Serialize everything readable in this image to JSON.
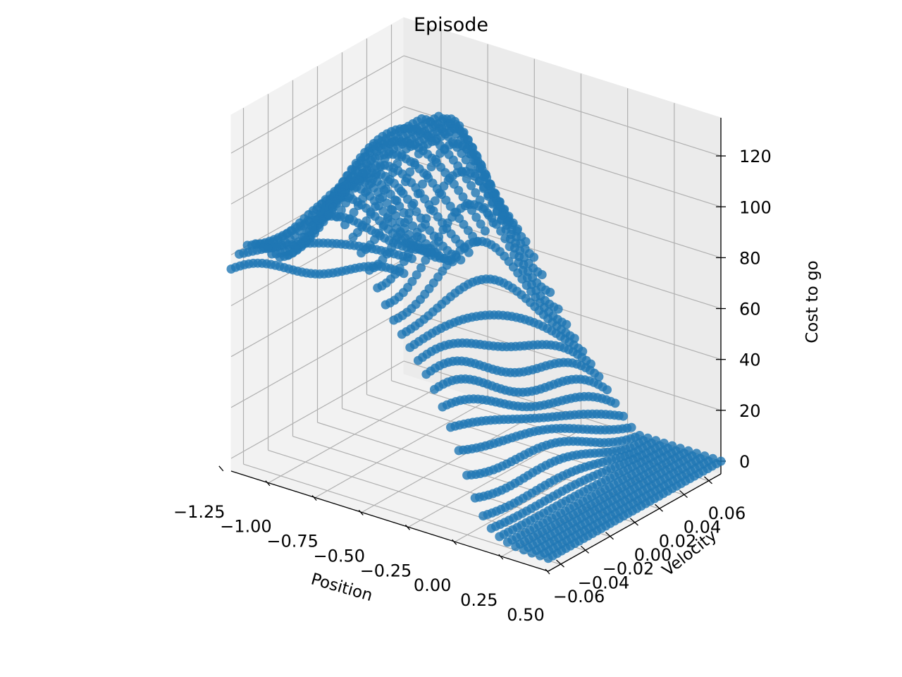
{
  "chart_data": {
    "type": "scatter",
    "projection": "3d",
    "title": "Episode",
    "xlabel": "Position",
    "ylabel": "Velocity",
    "zlabel": "Cost to go",
    "xlim": [
      -1.2,
      0.5
    ],
    "ylim": [
      -0.07,
      0.07
    ],
    "zlim": [
      -5,
      135
    ],
    "xticks": [
      "−1.25",
      "−1.00",
      "−0.75",
      "−0.50",
      "−0.25",
      "0.00",
      "0.25",
      "0.50"
    ],
    "yticks": [
      "−0.06",
      "−0.04",
      "−0.02",
      "0.00",
      "0.02",
      "0.04",
      "0.06"
    ],
    "zticks": [
      "0",
      "20",
      "40",
      "60",
      "80",
      "100",
      "120"
    ],
    "grid": true,
    "series": [
      {
        "marker_color": "#1f77b4",
        "grid_size": 40,
        "position_range": [
          -1.2,
          0.5
        ],
        "velocity_range": [
          -0.07,
          0.07
        ],
        "cost_to_go_min": 0,
        "cost_to_go_max": 125,
        "description": "Tile-coded cost-to-go estimate over a 40x40 grid of (position, velocity) states; cost is near 0 close to the goal at position 0.5 and peaks around 120 on a ridge between position -1.0 and -0.25."
      }
    ]
  }
}
